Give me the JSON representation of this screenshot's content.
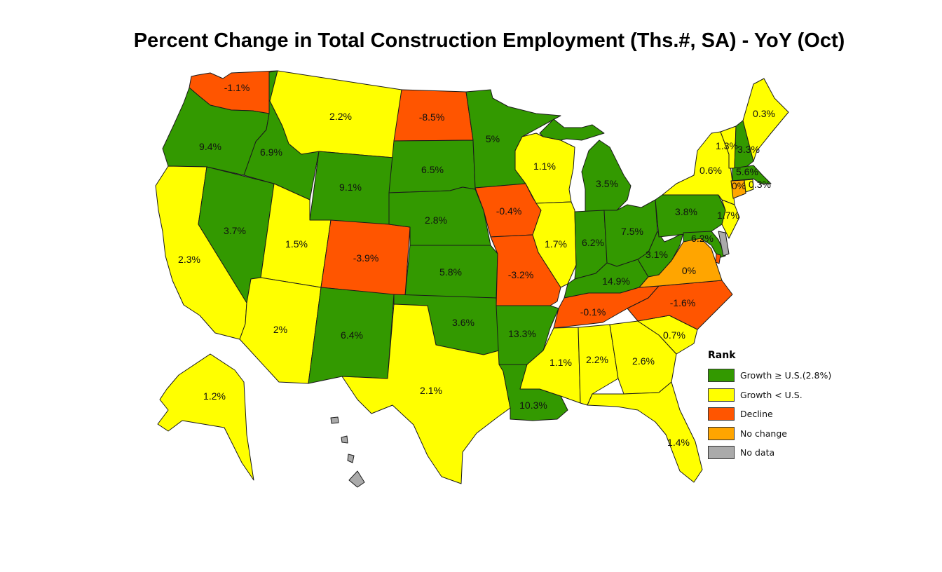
{
  "title": "Percent Change in Total Construction Employment (Ths.#, SA) - YoY (Oct)",
  "colors": {
    "growth_ge_us": "#339900",
    "growth_lt_us": "#FFFF00",
    "decline": "#FF5500",
    "no_change": "#FFA500",
    "no_data": "#AAAAAA"
  },
  "legend": {
    "title": "Rank",
    "items": [
      {
        "key": "growth_ge_us",
        "label": "Growth ≥ U.S.(2.8%)"
      },
      {
        "key": "growth_lt_us",
        "label": "Growth < U.S."
      },
      {
        "key": "decline",
        "label": "Decline"
      },
      {
        "key": "no_change",
        "label": "No change"
      },
      {
        "key": "no_data",
        "label": "No data"
      }
    ]
  },
  "states": {
    "WA": {
      "label": "-1.1%",
      "cat": "decline"
    },
    "OR": {
      "label": "9.4%",
      "cat": "growth_ge_us"
    },
    "CA": {
      "label": "2.3%",
      "cat": "growth_lt_us"
    },
    "NV": {
      "label": "3.7%",
      "cat": "growth_ge_us"
    },
    "ID": {
      "label": "6.9%",
      "cat": "growth_ge_us"
    },
    "MT": {
      "label": "2.2%",
      "cat": "growth_lt_us"
    },
    "WY": {
      "label": "9.1%",
      "cat": "growth_ge_us"
    },
    "UT": {
      "label": "1.5%",
      "cat": "growth_lt_us"
    },
    "AZ": {
      "label": "2%",
      "cat": "growth_lt_us"
    },
    "CO": {
      "label": "-3.9%",
      "cat": "decline"
    },
    "NM": {
      "label": "6.4%",
      "cat": "growth_ge_us"
    },
    "ND": {
      "label": "-8.5%",
      "cat": "decline"
    },
    "SD": {
      "label": "6.5%",
      "cat": "growth_ge_us"
    },
    "NE": {
      "label": "2.8%",
      "cat": "growth_ge_us"
    },
    "KS": {
      "label": "5.8%",
      "cat": "growth_ge_us"
    },
    "OK": {
      "label": "3.6%",
      "cat": "growth_ge_us"
    },
    "TX": {
      "label": "2.1%",
      "cat": "growth_lt_us"
    },
    "MN": {
      "label": "5%",
      "cat": "growth_ge_us"
    },
    "IA": {
      "label": "-0.4%",
      "cat": "decline"
    },
    "MO": {
      "label": "-3.2%",
      "cat": "decline"
    },
    "AR": {
      "label": "13.3%",
      "cat": "growth_ge_us"
    },
    "LA": {
      "label": "10.3%",
      "cat": "growth_ge_us"
    },
    "WI": {
      "label": "1.1%",
      "cat": "growth_lt_us"
    },
    "IL": {
      "label": "1.7%",
      "cat": "growth_lt_us"
    },
    "MI": {
      "label": "3.5%",
      "cat": "growth_ge_us"
    },
    "IN": {
      "label": "6.2%",
      "cat": "growth_ge_us"
    },
    "OH": {
      "label": "7.5%",
      "cat": "growth_ge_us"
    },
    "KY": {
      "label": "14.9%",
      "cat": "growth_ge_us"
    },
    "TN": {
      "label": "-0.1%",
      "cat": "decline"
    },
    "MS": {
      "label": "1.1%",
      "cat": "growth_lt_us"
    },
    "AL": {
      "label": "2.2%",
      "cat": "growth_lt_us"
    },
    "GA": {
      "label": "2.6%",
      "cat": "growth_lt_us"
    },
    "FL": {
      "label": "1.4%",
      "cat": "growth_lt_us"
    },
    "SC": {
      "label": "0.7%",
      "cat": "growth_lt_us"
    },
    "NC": {
      "label": "-1.6%",
      "cat": "decline"
    },
    "VA": {
      "label": "0%",
      "cat": "no_change"
    },
    "WV": {
      "label": "3.1%",
      "cat": "growth_ge_us"
    },
    "PA": {
      "label": "3.8%",
      "cat": "growth_ge_us"
    },
    "NY": {
      "label": "0.6%",
      "cat": "growth_lt_us"
    },
    "VT": {
      "label": "1.3%",
      "cat": "growth_lt_us"
    },
    "NH": {
      "label": "3.3%",
      "cat": "growth_ge_us"
    },
    "ME": {
      "label": "0.3%",
      "cat": "growth_lt_us"
    },
    "MA": {
      "label": "5.6%",
      "cat": "growth_ge_us"
    },
    "CT": {
      "label": "0%",
      "cat": "no_change"
    },
    "RI": {
      "label": "0.3%",
      "cat": "growth_lt_us"
    },
    "NJ": {
      "label": "1.7%",
      "cat": "growth_lt_us"
    },
    "MD": {
      "label": "6.2%",
      "cat": "growth_ge_us"
    },
    "DE": {
      "label": "",
      "cat": "no_data"
    },
    "DC": {
      "label": "",
      "cat": "decline"
    },
    "AK": {
      "label": "1.2%",
      "cat": "growth_lt_us"
    },
    "HI": {
      "label": "",
      "cat": "no_data"
    }
  }
}
